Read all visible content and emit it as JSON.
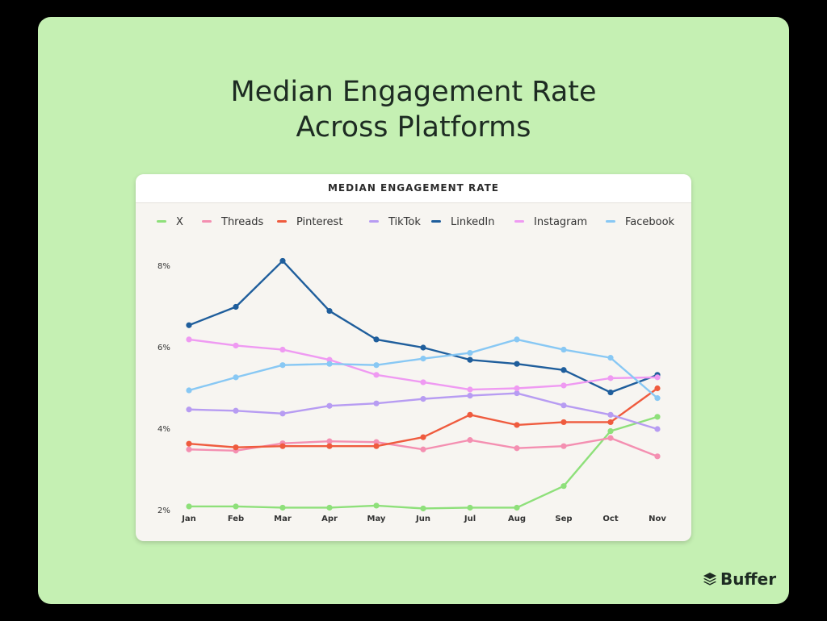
{
  "page": {
    "title_line1": "Median Engagement Rate",
    "title_line2": "Across Platforms"
  },
  "brand": {
    "name": "Buffer",
    "icon": "buffer-stack-icon"
  },
  "chart_data": {
    "type": "line",
    "title": "MEDIAN ENGAGEMENT RATE",
    "xlabel": "",
    "ylabel": "",
    "categories": [
      "Jan",
      "Feb",
      "Mar",
      "Apr",
      "May",
      "Jun",
      "Jul",
      "Aug",
      "Sep",
      "Oct",
      "Nov"
    ],
    "yticks": [
      {
        "value": 2,
        "label": "2%"
      },
      {
        "value": 4,
        "label": "4%"
      },
      {
        "value": 6,
        "label": "6%"
      },
      {
        "value": 8,
        "label": "8%"
      }
    ],
    "ylim": [
      2,
      8.2
    ],
    "grid": false,
    "legend": "top",
    "series": [
      {
        "name": "X",
        "color": "#8ee07a",
        "values": [
          2.1,
          2.1,
          2.07,
          2.07,
          2.12,
          2.05,
          2.07,
          2.07,
          2.6,
          3.95,
          4.3
        ]
      },
      {
        "name": "Threads",
        "color": "#f48fb1",
        "values": [
          3.5,
          3.47,
          3.65,
          3.7,
          3.68,
          3.5,
          3.73,
          3.53,
          3.58,
          3.78,
          3.33
        ]
      },
      {
        "name": "Pinterest",
        "color": "#ef5b3e",
        "values": [
          3.64,
          3.55,
          3.58,
          3.58,
          3.58,
          3.8,
          4.35,
          4.1,
          4.17,
          4.17,
          5.0
        ]
      },
      {
        "name": "TikTok",
        "color": "#b79cf2",
        "values": [
          4.48,
          4.45,
          4.38,
          4.57,
          4.63,
          4.74,
          4.82,
          4.88,
          4.58,
          4.35,
          4.0
        ]
      },
      {
        "name": "LinkedIn",
        "color": "#1f5e9c",
        "values": [
          6.55,
          7.0,
          8.13,
          6.9,
          6.2,
          6.0,
          5.7,
          5.6,
          5.45,
          4.9,
          5.33
        ]
      },
      {
        "name": "Instagram",
        "color": "#ef9af2",
        "values": [
          6.2,
          6.05,
          5.95,
          5.7,
          5.33,
          5.15,
          4.97,
          5.0,
          5.07,
          5.25,
          5.27
        ]
      },
      {
        "name": "Facebook",
        "color": "#88c8f4",
        "values": [
          4.95,
          5.27,
          5.57,
          5.6,
          5.57,
          5.73,
          5.87,
          6.2,
          5.95,
          5.75,
          4.76
        ]
      }
    ]
  }
}
